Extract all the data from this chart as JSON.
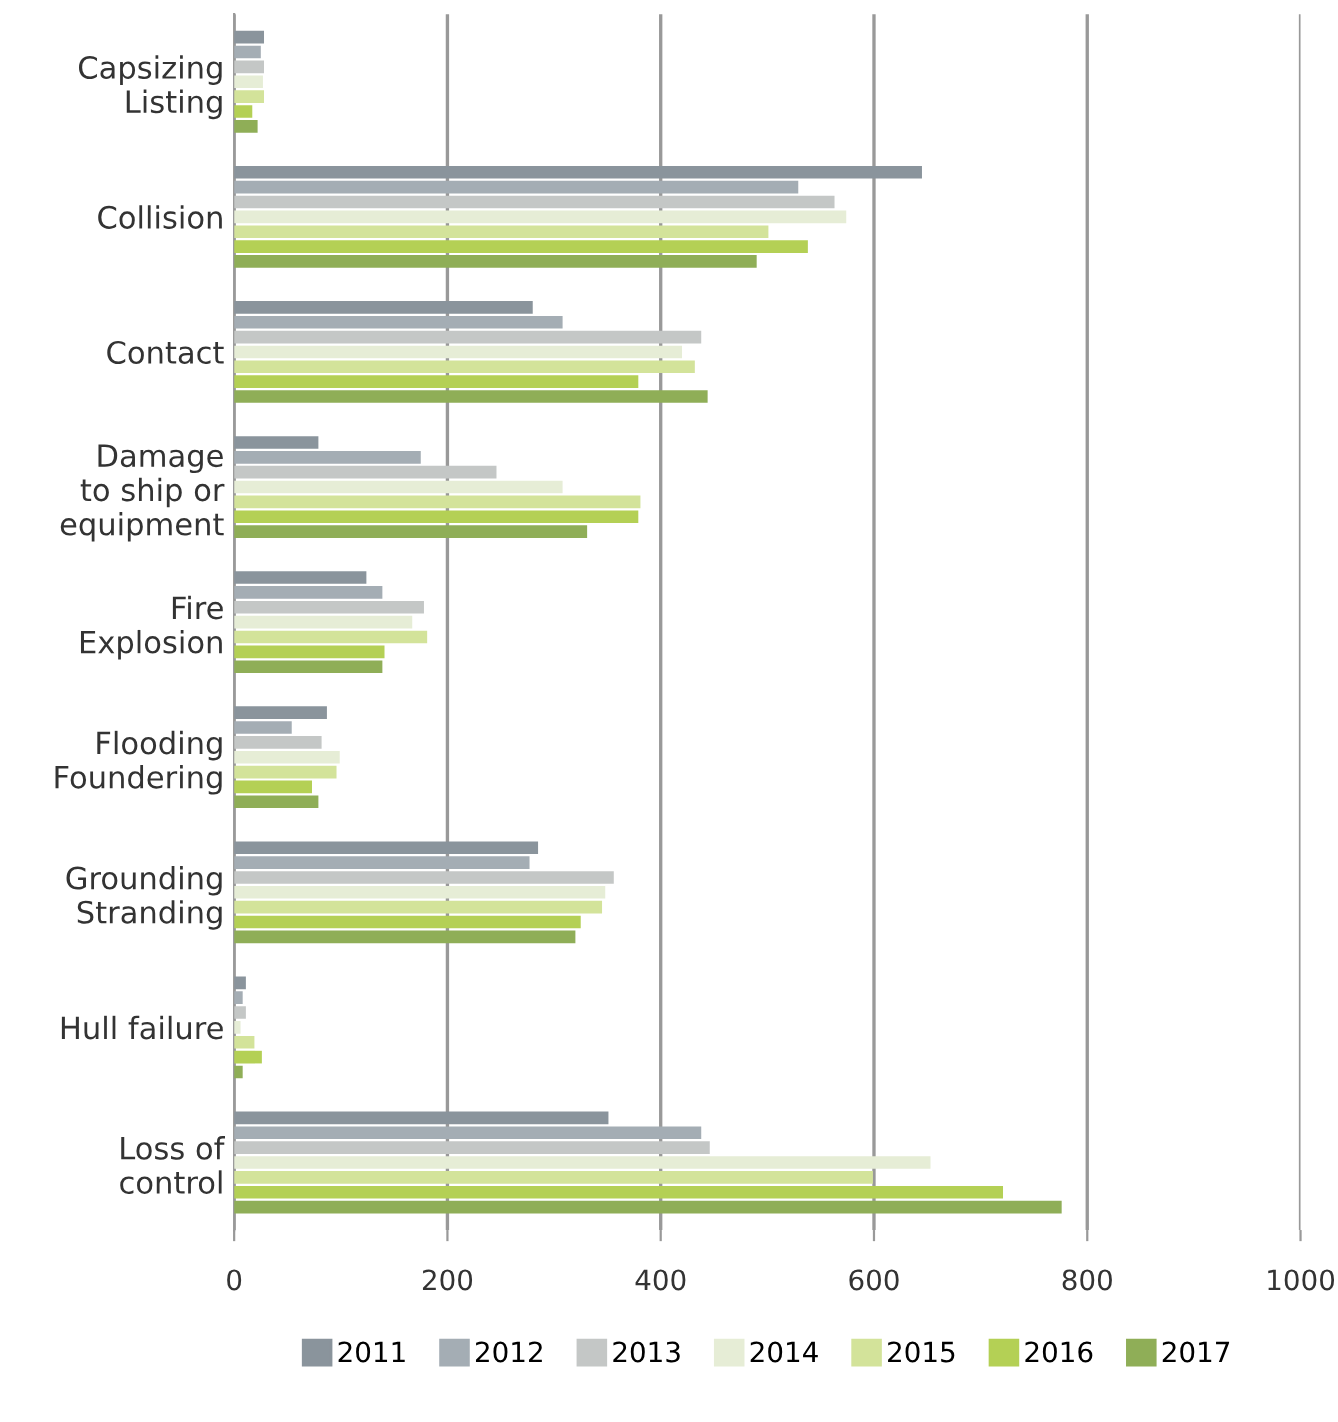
{
  "chart_data": {
    "type": "bar",
    "orientation": "horizontal",
    "categories": [
      "Capsizing\nListing",
      "Collision",
      "Contact",
      "Damage\nto ship or\nequipment",
      "Fire\nExplosion",
      "Flooding\nFoundering",
      "Grounding\nStranding",
      "Hull failure",
      "Loss of\ncontrol"
    ],
    "series": [
      {
        "name": "2011",
        "color": "#8a949c",
        "values": [
          28,
          645,
          280,
          79,
          124,
          87,
          285,
          11,
          351
        ]
      },
      {
        "name": "2012",
        "color": "#a4adb4",
        "values": [
          25,
          529,
          308,
          175,
          139,
          54,
          277,
          8,
          438
        ]
      },
      {
        "name": "2013",
        "color": "#c4c7c6",
        "values": [
          28,
          563,
          438,
          246,
          178,
          82,
          356,
          11,
          446
        ]
      },
      {
        "name": "2014",
        "color": "#e6edd6",
        "values": [
          27,
          574,
          420,
          308,
          167,
          99,
          348,
          6,
          653
        ]
      },
      {
        "name": "2015",
        "color": "#d3e39a",
        "values": [
          28,
          501,
          432,
          381,
          181,
          96,
          345,
          19,
          599
        ]
      },
      {
        "name": "2016",
        "color": "#b4d055",
        "values": [
          17,
          538,
          379,
          379,
          141,
          73,
          325,
          26,
          721
        ]
      },
      {
        "name": "2017",
        "color": "#8fae57",
        "values": [
          22,
          490,
          444,
          331,
          139,
          79,
          320,
          8,
          776
        ]
      }
    ],
    "xlim": [
      0,
      1000
    ],
    "xticks": [
      0,
      200,
      400,
      600,
      800,
      1000
    ],
    "grid": "x",
    "legend": "bottom"
  }
}
